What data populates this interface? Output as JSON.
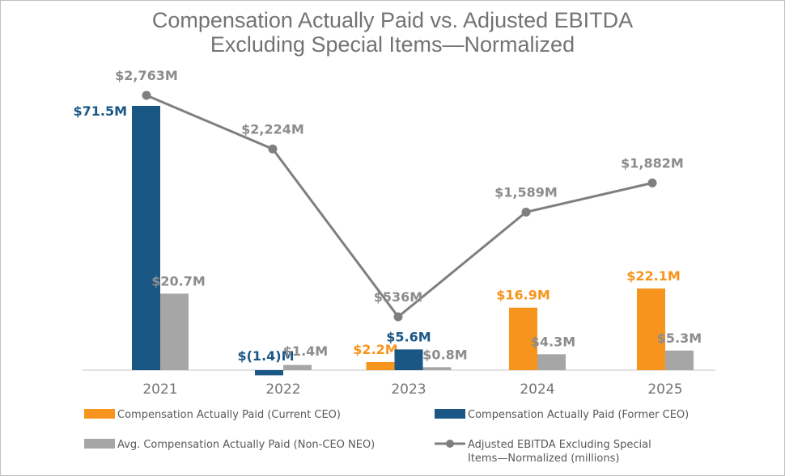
{
  "chart_data": {
    "type": "bar",
    "title": [
      "Compensation Actually Paid vs. Adjusted EBITDA",
      "Excluding Special Items—Normalized"
    ],
    "categories": [
      "2021",
      "2022",
      "2023",
      "2024",
      "2025"
    ],
    "series": [
      {
        "name": "Compensation Actually Paid (Current CEO)",
        "kind": "bar",
        "color": "#f7941d",
        "values": [
          null,
          null,
          2.2,
          16.9,
          22.1
        ],
        "labels": [
          "",
          "",
          "$2.2M",
          "$16.9M",
          "$22.1M"
        ]
      },
      {
        "name": "Compensation Actually Paid (Former CEO)",
        "kind": "bar",
        "color": "#1a5785",
        "values": [
          71.5,
          -1.4,
          5.6,
          null,
          null
        ],
        "labels": [
          "$71.5M",
          "$(1.4)M",
          "$5.6M",
          "",
          ""
        ]
      },
      {
        "name": "Avg. Compensation Actually Paid (Non-CEO NEO)",
        "kind": "bar",
        "color": "#a6a6a6",
        "values": [
          20.7,
          1.4,
          0.8,
          4.3,
          5.3
        ],
        "labels": [
          "$20.7M",
          "$1.4M",
          "$0.8M",
          "$4.3M",
          "$5.3M"
        ]
      },
      {
        "name": "Adjusted EBITDA Excluding Special Items—Normalized (millions)",
        "legend_lines": [
          "Adjusted EBITDA Excluding Special",
          "Items—Normalized (millions)"
        ],
        "kind": "line",
        "color": "#7f7f7f",
        "values": [
          2763,
          2224,
          536,
          1589,
          1882
        ],
        "labels": [
          "$2,763M",
          "$2,224M",
          "$536M",
          "$1,589M",
          "$1,882M"
        ]
      }
    ],
    "bar_axis_range": [
      -2,
      75
    ],
    "line_axis_range": [
      0,
      3000
    ],
    "legend_position": "bottom",
    "grid": false
  }
}
